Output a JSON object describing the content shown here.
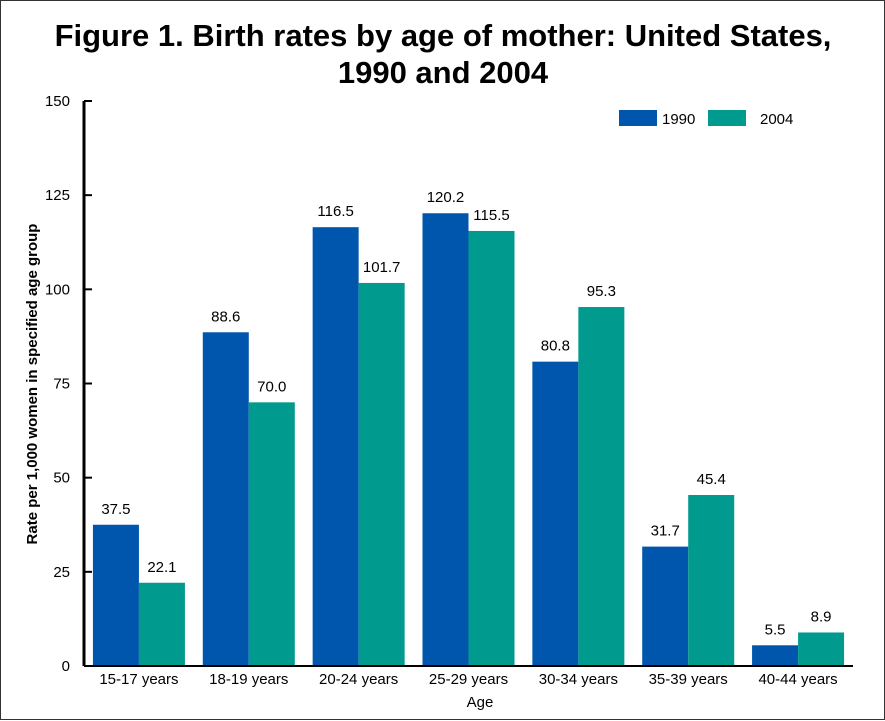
{
  "chart_data": {
    "type": "bar",
    "title_line1": "Figure 1. Birth rates by age of mother: United States,",
    "title_line2": "1990 and 2004",
    "xlabel": "Age",
    "ylabel": "Rate per 1,000 women in specified age group",
    "ylim": [
      0,
      150
    ],
    "yticks": [
      0,
      25,
      50,
      75,
      100,
      125,
      150
    ],
    "categories": [
      "15-17 years",
      "18-19 years",
      "20-24 years",
      "25-29 years",
      "30-34 years",
      "35-39 years",
      "40-44 years"
    ],
    "series": [
      {
        "name": "1990",
        "color": "#0056ac",
        "values": [
          37.5,
          88.6,
          116.5,
          120.2,
          80.8,
          31.7,
          5.5
        ],
        "labels": [
          "37.5",
          "88.6",
          "116.5",
          "120.2",
          "80.8",
          "31.7",
          "5.5"
        ]
      },
      {
        "name": "2004",
        "color": "#009a8e",
        "values": [
          22.1,
          70.0,
          101.7,
          115.5,
          95.3,
          45.4,
          8.9
        ],
        "labels": [
          "22.1",
          "70.0",
          "101.7",
          "115.5",
          "95.3",
          "45.4",
          "8.9"
        ]
      }
    ],
    "legend_position": "top-right",
    "grid": false
  }
}
